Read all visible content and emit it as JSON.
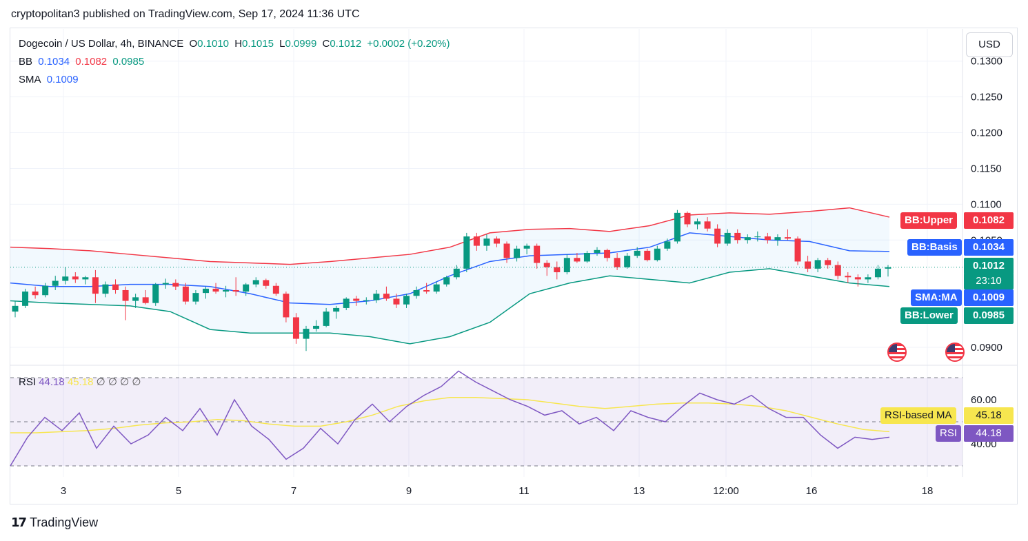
{
  "header": {
    "publish_line": "cryptopolitan3 published on TradingView.com, Sep 17, 2024 11:36 UTC"
  },
  "legend": {
    "title": "Dogecoin / US Dollar, 4h, BINANCE",
    "o_label": "O",
    "o_value": "0.1010",
    "h_label": "H",
    "h_value": "0.1015",
    "l_label": "L",
    "l_value": "0.0999",
    "c_label": "C",
    "c_value": "0.1012",
    "change": "+0.0002 (+0.20%)",
    "bb_label": "BB",
    "bb_basis": "0.1034",
    "bb_upper": "0.1082",
    "bb_lower": "0.0985",
    "sma_label": "SMA",
    "sma_value": "0.1009"
  },
  "rsi_legend": {
    "label": "RSI",
    "rsi": "44.18",
    "ma": "45.18",
    "extras": "∅ ∅ ∅ ∅"
  },
  "currency_button": "USD",
  "tags": {
    "bb_upper_label": "BB:Upper",
    "bb_upper_value": "0.1082",
    "bb_basis_label": "BB:Basis",
    "bb_basis_value": "0.1034",
    "last_price": "0.1012",
    "countdown": "23:10",
    "sma_label": "SMA:MA",
    "sma_value": "0.1009",
    "bb_lower_label": "BB:Lower",
    "bb_lower_value": "0.0985",
    "rsi_ma_label": "RSI-based MA",
    "rsi_ma_value": "45.18",
    "rsi_label": "RSI",
    "rsi_value": "44.18"
  },
  "brand": {
    "name": "TradingView",
    "mark": "17"
  },
  "colors": {
    "up": "#089981",
    "down": "#f23645",
    "bb_upper": "#f23645",
    "bb_basis": "#2962ff",
    "bb_lower": "#089981",
    "sma": "#2962ff",
    "rsi": "#7e57c2",
    "rsi_ma": "#f7e64f"
  },
  "chart_data": {
    "type": "candlestick",
    "price_axis": {
      "ticks": [
        "0.1300",
        "0.1250",
        "0.1200",
        "0.1150",
        "0.1100",
        "0.1050",
        "0.0900"
      ],
      "range": [
        0.0875,
        0.1345
      ]
    },
    "time_axis": {
      "ticks": [
        "3",
        "5",
        "7",
        "9",
        "11",
        "13",
        "12:00",
        "16",
        "18"
      ]
    },
    "rsi_axis": {
      "ticks": [
        "60.00",
        "40.00"
      ],
      "range": [
        25,
        75
      ],
      "bands": [
        70,
        50,
        30
      ]
    },
    "candles": [
      [
        0.095,
        0.0965,
        0.0942,
        0.0958
      ],
      [
        0.0958,
        0.0982,
        0.0955,
        0.0978
      ],
      [
        0.0978,
        0.0985,
        0.0968,
        0.0973
      ],
      [
        0.0973,
        0.099,
        0.097,
        0.0986
      ],
      [
        0.0986,
        0.1,
        0.098,
        0.0993
      ],
      [
        0.0993,
        0.1012,
        0.0988,
        0.0999
      ],
      [
        0.0999,
        0.1005,
        0.099,
        0.0995
      ],
      [
        0.0995,
        0.1,
        0.0988,
        0.0998
      ],
      [
        0.0998,
        0.1008,
        0.0962,
        0.0975
      ],
      [
        0.0975,
        0.0992,
        0.097,
        0.0988
      ],
      [
        0.0988,
        0.0995,
        0.0975,
        0.098
      ],
      [
        0.098,
        0.0985,
        0.0938,
        0.0965
      ],
      [
        0.0965,
        0.0975,
        0.0955,
        0.097
      ],
      [
        0.097,
        0.098,
        0.096,
        0.0962
      ],
      [
        0.0962,
        0.099,
        0.0958,
        0.0988
      ],
      [
        0.0988,
        0.0996,
        0.0982,
        0.099
      ],
      [
        0.099,
        0.0995,
        0.098,
        0.0985
      ],
      [
        0.0985,
        0.099,
        0.096,
        0.0964
      ],
      [
        0.0964,
        0.098,
        0.096,
        0.0976
      ],
      [
        0.0976,
        0.0985,
        0.0968,
        0.0982
      ],
      [
        0.0982,
        0.099,
        0.0975,
        0.0978
      ],
      [
        0.0978,
        0.0986,
        0.097,
        0.098
      ],
      [
        0.098,
        0.0998,
        0.0972,
        0.0978
      ],
      [
        0.0978,
        0.099,
        0.0972,
        0.0988
      ],
      [
        0.0988,
        0.0998,
        0.0984,
        0.0994
      ],
      [
        0.0994,
        0.0996,
        0.0982,
        0.0986
      ],
      [
        0.0986,
        0.099,
        0.0972,
        0.0975
      ],
      [
        0.0975,
        0.0978,
        0.0935,
        0.0942
      ],
      [
        0.0942,
        0.0948,
        0.0905,
        0.0912
      ],
      [
        0.0912,
        0.093,
        0.0895,
        0.0926
      ],
      [
        0.0926,
        0.0938,
        0.0922,
        0.093
      ],
      [
        0.093,
        0.0955,
        0.0928,
        0.095
      ],
      [
        0.095,
        0.0958,
        0.094,
        0.0955
      ],
      [
        0.0955,
        0.097,
        0.0952,
        0.0968
      ],
      [
        0.0968,
        0.0972,
        0.0958,
        0.0965
      ],
      [
        0.0965,
        0.097,
        0.096,
        0.0966
      ],
      [
        0.0966,
        0.098,
        0.0962,
        0.0975
      ],
      [
        0.0975,
        0.0985,
        0.0965,
        0.0968
      ],
      [
        0.0968,
        0.0975,
        0.0955,
        0.096
      ],
      [
        0.096,
        0.0975,
        0.0955,
        0.0972
      ],
      [
        0.0972,
        0.0985,
        0.0968,
        0.098
      ],
      [
        0.098,
        0.099,
        0.0975,
        0.0978
      ],
      [
        0.0978,
        0.0992,
        0.0975,
        0.0988
      ],
      [
        0.0988,
        0.1,
        0.0985,
        0.0998
      ],
      [
        0.0998,
        0.1015,
        0.0995,
        0.101
      ],
      [
        0.101,
        0.106,
        0.1005,
        0.1055
      ],
      [
        0.1055,
        0.106,
        0.1035,
        0.1042
      ],
      [
        0.1042,
        0.1058,
        0.1035,
        0.1052
      ],
      [
        0.1052,
        0.1055,
        0.104,
        0.1045
      ],
      [
        0.1045,
        0.1048,
        0.1018,
        0.1025
      ],
      [
        0.1025,
        0.1042,
        0.102,
        0.1038
      ],
      [
        0.1038,
        0.1045,
        0.103,
        0.1042
      ],
      [
        0.1042,
        0.1045,
        0.101,
        0.1018
      ],
      [
        0.1018,
        0.1022,
        0.1,
        0.1012
      ],
      [
        0.1012,
        0.102,
        0.0995,
        0.1005
      ],
      [
        0.1005,
        0.103,
        0.1002,
        0.1025
      ],
      [
        0.1025,
        0.1032,
        0.1018,
        0.102
      ],
      [
        0.102,
        0.1035,
        0.1018,
        0.1032
      ],
      [
        0.1032,
        0.104,
        0.1028,
        0.1036
      ],
      [
        0.1036,
        0.1038,
        0.102,
        0.1025
      ],
      [
        0.1025,
        0.1032,
        0.1008,
        0.1012
      ],
      [
        0.1012,
        0.1032,
        0.101,
        0.1028
      ],
      [
        0.1028,
        0.104,
        0.1025,
        0.1035
      ],
      [
        0.1035,
        0.1038,
        0.102,
        0.1022
      ],
      [
        0.1022,
        0.1042,
        0.102,
        0.1038
      ],
      [
        0.1038,
        0.1052,
        0.1035,
        0.1048
      ],
      [
        0.1048,
        0.1092,
        0.1045,
        0.1088
      ],
      [
        0.1088,
        0.109,
        0.1068,
        0.1072
      ],
      [
        0.1072,
        0.108,
        0.1065,
        0.1076
      ],
      [
        0.1076,
        0.1082,
        0.1062,
        0.1066
      ],
      [
        0.1066,
        0.1072,
        0.104,
        0.1045
      ],
      [
        0.1045,
        0.1065,
        0.1042,
        0.106
      ],
      [
        0.106,
        0.1065,
        0.1045,
        0.105
      ],
      [
        0.105,
        0.1058,
        0.1045,
        0.1054
      ],
      [
        0.1054,
        0.1062,
        0.1048,
        0.1055
      ],
      [
        0.1055,
        0.106,
        0.1045,
        0.105
      ],
      [
        0.105,
        0.1058,
        0.1042,
        0.1054
      ],
      [
        0.1054,
        0.1065,
        0.105,
        0.1052
      ],
      [
        0.1052,
        0.1055,
        0.1015,
        0.102
      ],
      [
        0.102,
        0.1028,
        0.1005,
        0.101
      ],
      [
        0.101,
        0.1025,
        0.1005,
        0.1022
      ],
      [
        0.1022,
        0.1025,
        0.101,
        0.1015
      ],
      [
        0.1015,
        0.102,
        0.0995,
        0.1
      ],
      [
        0.1,
        0.1005,
        0.099,
        0.0998
      ],
      [
        0.0998,
        0.1002,
        0.0985,
        0.0995
      ],
      [
        0.0995,
        0.1002,
        0.099,
        0.0998
      ],
      [
        0.0998,
        0.1015,
        0.0995,
        0.101
      ],
      [
        0.101,
        0.1015,
        0.0999,
        0.1012
      ]
    ],
    "bb_upper": [
      0.104,
      0.1038,
      0.1035,
      0.103,
      0.1025,
      0.102,
      0.1018,
      0.1016,
      0.102,
      0.1025,
      0.103,
      0.104,
      0.106,
      0.1065,
      0.1066,
      0.1062,
      0.107,
      0.1085,
      0.1088,
      0.1086,
      0.109,
      0.1095,
      0.1082
    ],
    "bb_basis": [
      0.099,
      0.0985,
      0.0985,
      0.0988,
      0.0988,
      0.0985,
      0.0975,
      0.0962,
      0.096,
      0.0965,
      0.0975,
      0.1,
      0.102,
      0.1028,
      0.103,
      0.1032,
      0.104,
      0.106,
      0.1055,
      0.105,
      0.1048,
      0.1035,
      0.1034
    ],
    "bb_lower": [
      0.0965,
      0.0962,
      0.096,
      0.0958,
      0.095,
      0.0925,
      0.092,
      0.092,
      0.092,
      0.0915,
      0.0905,
      0.0915,
      0.0935,
      0.0975,
      0.099,
      0.1,
      0.0995,
      0.099,
      0.1005,
      0.101,
      0.1,
      0.099,
      0.0985
    ],
    "rsi": [
      30,
      43,
      52,
      46,
      54,
      38,
      48,
      40,
      44,
      52,
      46,
      56,
      44,
      60,
      48,
      42,
      33,
      38,
      47,
      40,
      51,
      58,
      50,
      57,
      62,
      66,
      73,
      68,
      64,
      60,
      57,
      53,
      55,
      49,
      52,
      46,
      55,
      52,
      50,
      57,
      63,
      60,
      58,
      62,
      56,
      52,
      52,
      44,
      38,
      43,
      42,
      43
    ],
    "rsi_ma": [
      45,
      45,
      45.5,
      46,
      47,
      48.5,
      49.5,
      50,
      51,
      50.5,
      49,
      48,
      48,
      50,
      53,
      57,
      59.5,
      61,
      61,
      60.5,
      60,
      58.5,
      57,
      56,
      57,
      58,
      58.5,
      58.5,
      58,
      57,
      55,
      52,
      49,
      46.5,
      45.5
    ]
  }
}
